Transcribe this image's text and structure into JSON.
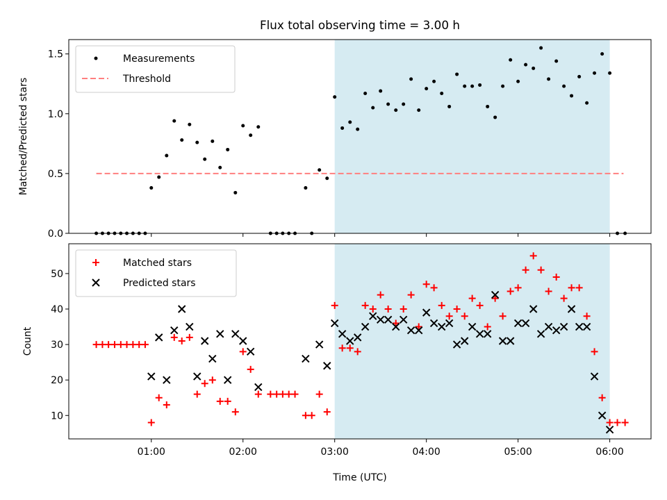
{
  "title": "Flux total observing time = 3.00 h",
  "colors": {
    "measurement": "#000000",
    "threshold": "#ff7f7f",
    "matched": "#ff0000",
    "predicted": "#000000",
    "highlight": "#add8e6"
  },
  "chart_data": [
    {
      "type": "scatter",
      "panel": "top",
      "ylabel": "Matched/Predicted stars",
      "xlabel": "",
      "x_unit": "hours UTC",
      "xlim": [
        0.1,
        6.45
      ],
      "ylim": [
        0,
        1.62
      ],
      "yticks": [
        0.0,
        0.5,
        1.0,
        1.5
      ],
      "ytick_labels": [
        "0.0",
        "0.5",
        "1.0",
        "1.5"
      ],
      "shaded_span": [
        3.0,
        6.0
      ],
      "legend": {
        "placement": "upper left",
        "entries": [
          "Measurements",
          "Threshold"
        ]
      },
      "threshold": {
        "name": "Threshold",
        "x": [
          0.4,
          6.15
        ],
        "y": 0.5
      },
      "series": [
        {
          "name": "Measurements",
          "x": [
            0.4,
            0.467,
            0.533,
            0.6,
            0.667,
            0.733,
            0.8,
            0.867,
            0.933,
            1.0,
            1.083,
            1.167,
            1.25,
            1.333,
            1.417,
            1.5,
            1.583,
            1.667,
            1.75,
            1.833,
            1.917,
            2.0,
            2.083,
            2.167,
            2.3,
            2.367,
            2.433,
            2.5,
            2.567,
            2.683,
            2.75,
            2.833,
            2.917,
            3.0,
            3.083,
            3.167,
            3.25,
            3.333,
            3.417,
            3.5,
            3.583,
            3.667,
            3.75,
            3.833,
            3.917,
            4.0,
            4.083,
            4.167,
            4.25,
            4.333,
            4.417,
            4.5,
            4.583,
            4.667,
            4.75,
            4.833,
            4.917,
            5.0,
            5.083,
            5.167,
            5.25,
            5.333,
            5.417,
            5.5,
            5.583,
            5.667,
            5.75,
            5.833,
            5.917,
            6.0,
            6.083,
            6.167
          ],
          "y": [
            0,
            0,
            0,
            0,
            0,
            0,
            0,
            0,
            0,
            0.38,
            0.47,
            0.65,
            0.94,
            0.78,
            0.91,
            0.76,
            0.62,
            0.77,
            0.55,
            0.7,
            0.34,
            0.9,
            0.82,
            0.89,
            0,
            0,
            0,
            0,
            0,
            0.38,
            0,
            0.53,
            0.46,
            1.14,
            0.88,
            0.93,
            0.87,
            1.17,
            1.05,
            1.19,
            1.08,
            1.03,
            1.08,
            1.29,
            1.03,
            1.21,
            1.27,
            1.17,
            1.06,
            1.33,
            1.23,
            1.23,
            1.24,
            1.06,
            0.97,
            1.23,
            1.45,
            1.27,
            1.41,
            1.38,
            1.55,
            1.29,
            1.44,
            1.23,
            1.15,
            1.31,
            1.09,
            1.34,
            1.5,
            1.34,
            0,
            0
          ]
        }
      ]
    },
    {
      "type": "scatter",
      "panel": "bottom",
      "ylabel": "Count",
      "xlabel": "Time (UTC)",
      "xlim": [
        0.1,
        6.45
      ],
      "ylim": [
        3.4,
        58.4
      ],
      "xticks": [
        1,
        2,
        3,
        4,
        5,
        6
      ],
      "xtick_labels": [
        "01:00",
        "02:00",
        "03:00",
        "04:00",
        "05:00",
        "06:00"
      ],
      "yticks": [
        10,
        20,
        30,
        40,
        50
      ],
      "ytick_labels": [
        "10",
        "20",
        "30",
        "40",
        "50"
      ],
      "shaded_span": [
        3.0,
        6.0
      ],
      "legend": {
        "placement": "upper left",
        "entries": [
          "Matched stars",
          "Predicted stars"
        ]
      },
      "series": [
        {
          "name": "Matched stars",
          "marker": "plus",
          "x": [
            0.4,
            0.467,
            0.533,
            0.6,
            0.667,
            0.733,
            0.8,
            0.867,
            0.933,
            1.0,
            1.083,
            1.167,
            1.25,
            1.333,
            1.417,
            1.5,
            1.583,
            1.667,
            1.75,
            1.833,
            1.917,
            2.0,
            2.083,
            2.167,
            2.3,
            2.367,
            2.433,
            2.5,
            2.567,
            2.683,
            2.75,
            2.833,
            2.917,
            3.0,
            3.083,
            3.167,
            3.25,
            3.333,
            3.417,
            3.5,
            3.583,
            3.667,
            3.75,
            3.833,
            3.917,
            4.0,
            4.083,
            4.167,
            4.25,
            4.333,
            4.417,
            4.5,
            4.583,
            4.667,
            4.75,
            4.833,
            4.917,
            5.0,
            5.083,
            5.167,
            5.25,
            5.333,
            5.417,
            5.5,
            5.583,
            5.667,
            5.75,
            5.833,
            5.917,
            6.0,
            6.083,
            6.167
          ],
          "y": [
            30,
            30,
            30,
            30,
            30,
            30,
            30,
            30,
            30,
            8,
            15,
            13,
            32,
            31,
            32,
            16,
            19,
            20,
            14,
            14,
            11,
            28,
            23,
            16,
            16,
            16,
            16,
            16,
            16,
            10,
            10,
            16,
            11,
            41,
            29,
            29,
            28,
            41,
            40,
            44,
            40,
            36,
            40,
            44,
            35,
            47,
            46,
            41,
            38,
            40,
            38,
            43,
            41,
            35,
            43,
            38,
            45,
            46,
            51,
            55,
            51,
            45,
            49,
            43,
            46,
            46,
            38,
            28,
            15,
            8,
            8,
            8
          ]
        },
        {
          "name": "Predicted stars",
          "marker": "x",
          "x": [
            1.0,
            1.083,
            1.167,
            1.25,
            1.333,
            1.417,
            1.5,
            1.583,
            1.667,
            1.75,
            1.833,
            1.917,
            2.0,
            2.083,
            2.167,
            2.683,
            2.833,
            2.917,
            3.0,
            3.083,
            3.167,
            3.25,
            3.333,
            3.417,
            3.5,
            3.583,
            3.667,
            3.75,
            3.833,
            3.917,
            4.0,
            4.083,
            4.167,
            4.25,
            4.333,
            4.417,
            4.5,
            4.583,
            4.667,
            4.75,
            4.833,
            4.917,
            5.0,
            5.083,
            5.167,
            5.25,
            5.333,
            5.417,
            5.5,
            5.583,
            5.667,
            5.75,
            5.833,
            5.917,
            6.0
          ],
          "y": [
            21,
            32,
            20,
            34,
            40,
            35,
            21,
            31,
            26,
            33,
            20,
            33,
            31,
            28,
            18,
            26,
            30,
            24,
            36,
            33,
            31,
            32,
            35,
            38,
            37,
            37,
            35,
            37,
            34,
            34,
            39,
            36,
            35,
            36,
            30,
            31,
            35,
            33,
            33,
            44,
            31,
            31,
            36,
            36,
            40,
            33,
            35,
            34,
            35,
            40,
            35,
            35,
            21,
            10,
            6
          ]
        }
      ]
    }
  ]
}
